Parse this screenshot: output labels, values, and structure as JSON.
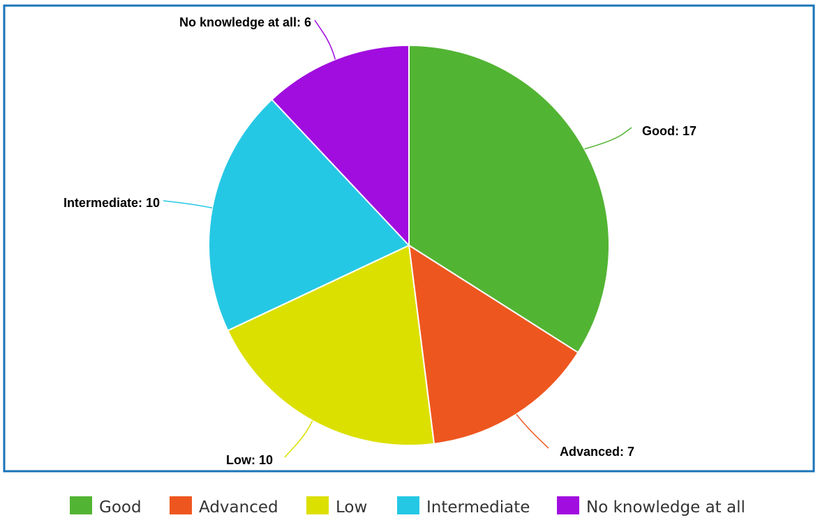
{
  "chart_data": {
    "type": "pie",
    "title": "",
    "categories": [
      "Good",
      "Advanced",
      "Low",
      "Intermediate",
      "No knowledge at all"
    ],
    "values": [
      17,
      7,
      10,
      10,
      6
    ],
    "colors": [
      "#52b433",
      "#ee561f",
      "#dce000",
      "#25c8e4",
      "#a10ddf"
    ],
    "data_labels": [
      "Good: 17",
      "Advanced: 7",
      "Low: 10",
      "Intermediate: 10",
      "No knowledge at all: 6"
    ],
    "legend": {
      "placement": "bottom",
      "entries": [
        "Good",
        "Advanced",
        "Low",
        "Intermediate",
        "No knowledge at all"
      ]
    },
    "frame_color": "#1a73b8"
  }
}
